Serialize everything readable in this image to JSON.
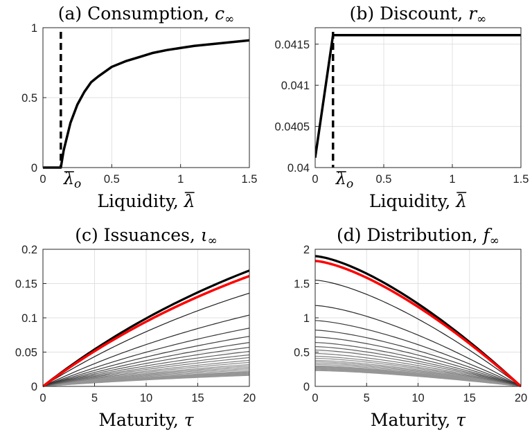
{
  "colors": {
    "black": "#000000",
    "red": "#ff0000",
    "grid": "#e0e0e0",
    "gray": "#909090"
  },
  "chart_data": [
    {
      "id": "a",
      "type": "line",
      "title_prefix": "(a) Consumption, ",
      "title_symbol": "c",
      "title_sub": "∞",
      "xlabel_prefix": "Liquidity, ",
      "xlabel_symbol": "λ",
      "xlim": [
        0,
        1.5
      ],
      "ylim": [
        0,
        1
      ],
      "xticks": [
        0,
        0.5,
        1,
        1.5
      ],
      "xtick_labels": [
        "0",
        "0.5",
        "1",
        "1.5"
      ],
      "yticks": [
        0,
        0.5,
        1
      ],
      "ytick_labels": [
        "0",
        "0.5",
        "1"
      ],
      "grid": true,
      "series": [
        {
          "style": "solid",
          "x": [
            0,
            0.13,
            0.14,
            0.15,
            0.17,
            0.2,
            0.25,
            0.3,
            0.35,
            0.4,
            0.5,
            0.6,
            0.7,
            0.8,
            0.9,
            1.0,
            1.1,
            1.2,
            1.3,
            1.4,
            1.5
          ],
          "y": [
            0,
            0,
            0.06,
            0.12,
            0.2,
            0.32,
            0.45,
            0.54,
            0.61,
            0.65,
            0.72,
            0.76,
            0.79,
            0.82,
            0.84,
            0.855,
            0.87,
            0.88,
            0.89,
            0.9,
            0.91
          ]
        }
      ],
      "vline": {
        "x": 0.13,
        "style": "dashed"
      },
      "annotation": {
        "text_symbol": "λ",
        "text_sub": "o",
        "x": 0.13
      }
    },
    {
      "id": "b",
      "type": "line",
      "title_prefix": "(b) Discount, ",
      "title_symbol": "r",
      "title_sub": "∞",
      "xlabel_prefix": "Liquidity, ",
      "xlabel_symbol": "λ",
      "xlim": [
        0,
        1.5
      ],
      "ylim": [
        0.04,
        0.0417
      ],
      "xticks": [
        0,
        0.5,
        1,
        1.5
      ],
      "xtick_labels": [
        "0",
        "0.5",
        "1",
        "1.5"
      ],
      "yticks": [
        0.04,
        0.0405,
        0.041,
        0.0415
      ],
      "ytick_labels": [
        "0.04",
        "0.0405",
        "0.041",
        "0.0415"
      ],
      "grid": true,
      "series": [
        {
          "style": "solid",
          "x": [
            0,
            0.13,
            1.5
          ],
          "y": [
            0.04012,
            0.04161,
            0.04161
          ]
        }
      ],
      "vline": {
        "x": 0.13,
        "style": "dashed"
      },
      "annotation": {
        "text_symbol": "λ",
        "text_sub": "o",
        "x": 0.13
      }
    },
    {
      "id": "c",
      "type": "line",
      "title_prefix": "(c) Issuances, ",
      "title_symbol": "ι",
      "title_sub": "∞",
      "xlabel_prefix": "Maturity, ",
      "xlabel_symbol": "τ",
      "xlim": [
        0,
        20
      ],
      "ylim": [
        0,
        0.2
      ],
      "xticks": [
        0,
        5,
        10,
        15,
        20
      ],
      "xtick_labels": [
        "0",
        "5",
        "10",
        "15",
        "20"
      ],
      "yticks": [
        0,
        0.05,
        0.1,
        0.15,
        0.2
      ],
      "ytick_labels": [
        "0",
        "0.05",
        "0.1",
        "0.15",
        "0.2"
      ],
      "grid": true,
      "family": {
        "shape": "concave_rising",
        "k": 0.35,
        "end_values": [
          0.169,
          0.136,
          0.104,
          0.085,
          0.073,
          0.064,
          0.057,
          0.051,
          0.046,
          0.042,
          0.038,
          0.035,
          0.032,
          0.03,
          0.028,
          0.026,
          0.024,
          0.022,
          0.021,
          0.02,
          0.019,
          0.018,
          0.017,
          0.016
        ]
      },
      "highlight": {
        "end_value": 0.161,
        "color": "red"
      }
    },
    {
      "id": "d",
      "type": "line",
      "title_prefix": "(d) Distribution, ",
      "title_symbol": "f",
      "title_sub": "∞",
      "xlabel_prefix": "Maturity, ",
      "xlabel_symbol": "τ",
      "xlim": [
        0,
        20
      ],
      "ylim": [
        0,
        2
      ],
      "xticks": [
        0,
        5,
        10,
        15,
        20
      ],
      "xtick_labels": [
        "0",
        "5",
        "10",
        "15",
        "20"
      ],
      "yticks": [
        0,
        0.5,
        1,
        1.5,
        2
      ],
      "ytick_labels": [
        "0",
        "0.5",
        "1",
        "1.5",
        "2"
      ],
      "grid": true,
      "family": {
        "shape": "concave_falling",
        "k": 0.35,
        "start_values": [
          1.9,
          1.55,
          1.18,
          0.96,
          0.82,
          0.72,
          0.64,
          0.58,
          0.53,
          0.48,
          0.44,
          0.41,
          0.38,
          0.36,
          0.34,
          0.32,
          0.3,
          0.29,
          0.28,
          0.27,
          0.26,
          0.25,
          0.24,
          0.23
        ]
      },
      "highlight": {
        "start_value": 1.83,
        "color": "red"
      }
    }
  ]
}
